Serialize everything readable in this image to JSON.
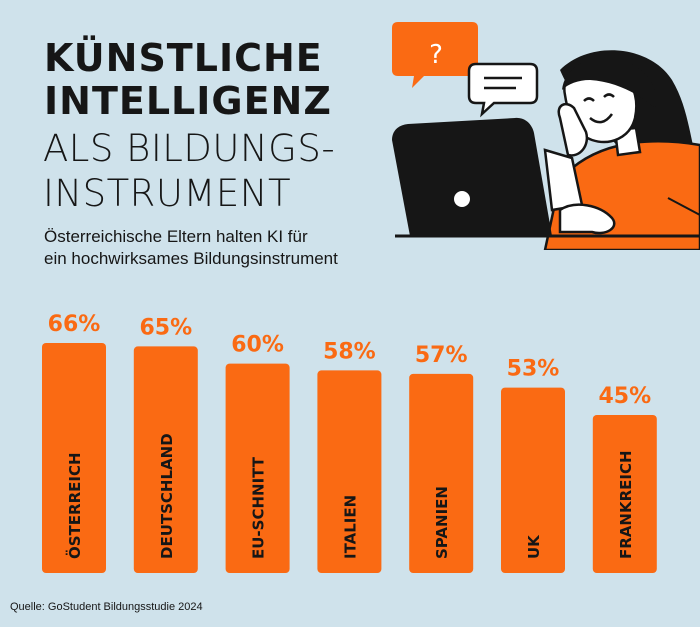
{
  "header": {
    "title_line1": "KÜNSTLICHE",
    "title_line2": "INTELLIGENZ",
    "title_line3": "ALS BILDUNGS-",
    "title_line4": "INSTRUMENT",
    "subtitle_line1": "Österreichische Eltern halten KI für",
    "subtitle_line2": "ein hochwirksames Bildungsinstrument"
  },
  "illustration": {
    "bubble1_glyph": "?"
  },
  "source": "Quelle: GoStudent Bildungsstudie 2024",
  "colors": {
    "background": "#cfe2eb",
    "accent": "#fa6a13",
    "ink": "#161616"
  },
  "chart_data": {
    "type": "bar",
    "categories": [
      "ÖSTERREICH",
      "DEUTSCHLAND",
      "EU-SCHNITT",
      "ITALIEN",
      "SPANIEN",
      "UK",
      "FRANKREICH"
    ],
    "values": [
      66,
      65,
      60,
      58,
      57,
      53,
      45
    ],
    "value_labels": [
      "66%",
      "65%",
      "60%",
      "58%",
      "57%",
      "53%",
      "45%"
    ],
    "unit": "%",
    "grid": false,
    "legend": "none"
  }
}
